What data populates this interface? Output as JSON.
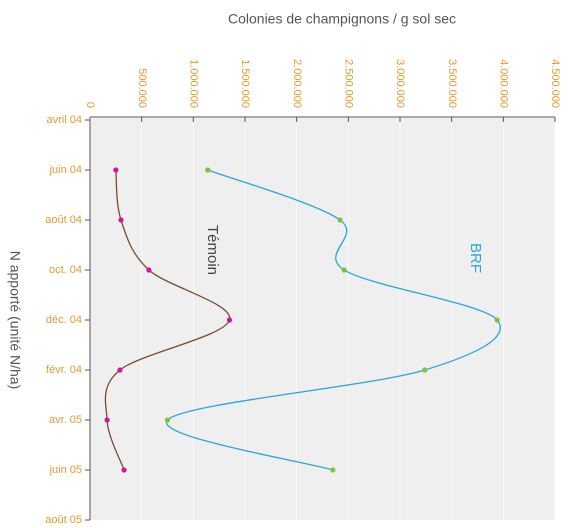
{
  "chart_data": {
    "type": "line",
    "title": "Colonies de champignons / g sol sec",
    "y_axis_label": "N apporté (unité N/ha)",
    "categories": [
      "avril 04",
      "juin 04",
      "août 04",
      "oct. 04",
      "déc. 04",
      "févr. 04",
      "avr. 05",
      "juin 05",
      "août 05"
    ],
    "series": [
      {
        "name": "Témoin",
        "color": "#7a4a2e",
        "marker_color": "#d0169a",
        "values": [
          null,
          250000,
          300000,
          570000,
          1350000,
          290000,
          165000,
          330000,
          null
        ]
      },
      {
        "name": "BRF",
        "color": "#2aa6d8",
        "marker_color": "#7cc43a",
        "values": [
          null,
          1140000,
          2420000,
          2460000,
          3940000,
          3240000,
          750000,
          2350000,
          null
        ]
      }
    ],
    "xlim": [
      0,
      4500000
    ],
    "xticks": [
      0,
      {
        "value": 500000,
        "label": "500.000"
      },
      {
        "value": 1000000,
        "label": "1.000.000"
      },
      {
        "value": 1500000,
        "label": "1.500.000"
      },
      {
        "value": 2000000,
        "label": "2.000.000"
      },
      {
        "value": 2500000,
        "label": "2.500.000"
      },
      {
        "value": 3000000,
        "label": "3.000.000"
      },
      {
        "value": 3500000,
        "label": "3.500.000"
      },
      {
        "value": 4000000,
        "label": "4.000.000"
      },
      {
        "value": 4500000,
        "label": "4.500.000"
      }
    ],
    "grid": true,
    "smooth": true
  }
}
